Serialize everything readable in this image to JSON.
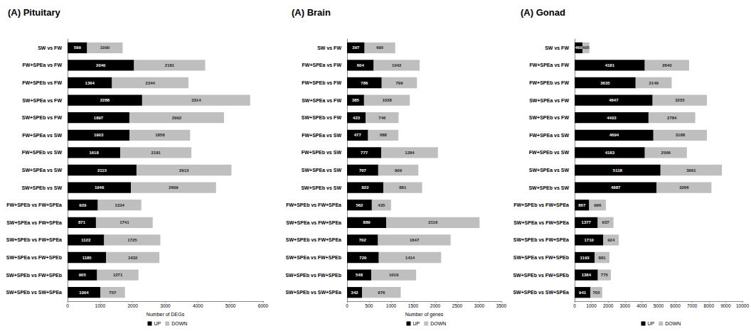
{
  "chart_data": [
    {
      "type": "bar",
      "title": "(A) Pituitary",
      "orientation": "horizontal",
      "stacked": true,
      "data_labels": true,
      "legend": "bottom",
      "grid": false,
      "xlabel": "Number of DEGs",
      "categories": [
        "SW vs FW",
        "FW+SPEa vs FW",
        "FW+SPEb vs FW",
        "SW+SPEa vs FW",
        "SW+SPEb vs FW",
        "FW+SPEa vs SW",
        "FW+SPEb vs SW",
        "SW+SPEa vs SW",
        "SW+SPEb vs SW",
        "FW+SPEb vs FW+SPEa",
        "SW+SPEa vs FW+SPEa",
        "SW+SPEb vs FW+SPEa",
        "SW+SPEa vs FW+SPEb",
        "SW+SPEb vs FW+SPEb",
        "SW+SPEb vs SW+SPEa"
      ],
      "series": [
        {
          "name": "UP",
          "color": "#000000",
          "values": [
            599,
            2040,
            1364,
            2288,
            1897,
            1903,
            1618,
            2115,
            1946,
            929,
            871,
            1122,
            1185,
            905,
            1004
          ]
        },
        {
          "name": "DOWN",
          "color": "#bfbfbf",
          "values": [
            1090,
            2181,
            2344,
            3314,
            2902,
            1858,
            2181,
            2913,
            2609,
            1334,
            1741,
            1725,
            1632,
            1271,
            757
          ]
        }
      ],
      "xlim": [
        0,
        6000
      ],
      "xticks": [
        0,
        1000,
        2000,
        3000,
        4000,
        5000,
        6000
      ]
    },
    {
      "type": "bar",
      "title": "(A) Brain",
      "orientation": "horizontal",
      "stacked": true,
      "data_labels": true,
      "legend": "bottom",
      "grid": false,
      "xlabel": "Number of genes",
      "categories": [
        "SW vs FW",
        "FW+SPEa vs FW",
        "FW+SPEb vs FW",
        "SW+SPEa vs FW",
        "SW+SPEb vs FW",
        "FW+SPEa vs SW",
        "FW+SPEb vs SW",
        "SW+SPEa vs SW",
        "SW+SPEb vs SW",
        "FW+SPEb vs FW+SPEa",
        "SW+SPEa vs FW+SPEa",
        "SW+SPEb vs FW+SPEa",
        "SW+SPEa vs FW+SPEb",
        "SW+SPEb vs FW+SPEb",
        "SW+SPEb vs SW+SPEa"
      ],
      "series": [
        {
          "name": "UP",
          "color": "#000000",
          "values": [
            397,
            604,
            786,
            385,
            423,
            477,
            777,
            707,
            822,
            562,
            889,
            702,
            720,
            548,
            342
          ]
        },
        {
          "name": "DOWN",
          "color": "#bfbfbf",
          "values": [
            695,
            1042,
            799,
            1038,
            746,
            688,
            1284,
            909,
            881,
            435,
            2116,
            1647,
            1414,
            1019,
            876
          ]
        }
      ],
      "xlim": [
        0,
        3500
      ],
      "xticks": [
        0,
        500,
        1000,
        1500,
        2000,
        2500,
        3000,
        3500
      ]
    },
    {
      "type": "bar",
      "title": "(A) Gonad",
      "orientation": "horizontal",
      "stacked": true,
      "data_labels": true,
      "legend": "bottom",
      "grid": false,
      "categories": [
        "SW vs FW",
        "FW+SPEa vs FW",
        "FW+SPEb vs FW",
        "SW+SPEa vs FW",
        "SW+SPEb vs FW",
        "FW+SPEa vs SW",
        "FW+SPEb vs SW",
        "SW+SPEa vs SW",
        "SW+SPEb vs SW",
        "FW+SPEb vs FW+SPEa",
        "SW+SPEa vs FW+SPEa",
        "SW+SPEb vs FW+SPEa",
        "SW+SPEa vs FW+SPEb",
        "SW+SPEb vs FW+SPEb",
        "SW+SPEb vs SW+SPEa"
      ],
      "series": [
        {
          "name": "UP",
          "color": "#000000",
          "values": [
            469,
            4181,
            3635,
            4647,
            4403,
            4694,
            4183,
            5118,
            4887,
            867,
            1377,
            1710,
            1193,
            1384,
            941
          ]
        },
        {
          "name": "DOWN",
          "color": "#bfbfbf",
          "values": [
            405,
            2640,
            2149,
            3235,
            2784,
            3188,
            2506,
            3661,
            3266,
            996,
            937,
            924,
            881,
            775,
            705
          ]
        }
      ],
      "xlim": [
        0,
        10000
      ],
      "xticks": [
        0,
        1000,
        2000,
        3000,
        4000,
        5000,
        6000,
        7000,
        8000,
        9000,
        10000
      ]
    }
  ]
}
